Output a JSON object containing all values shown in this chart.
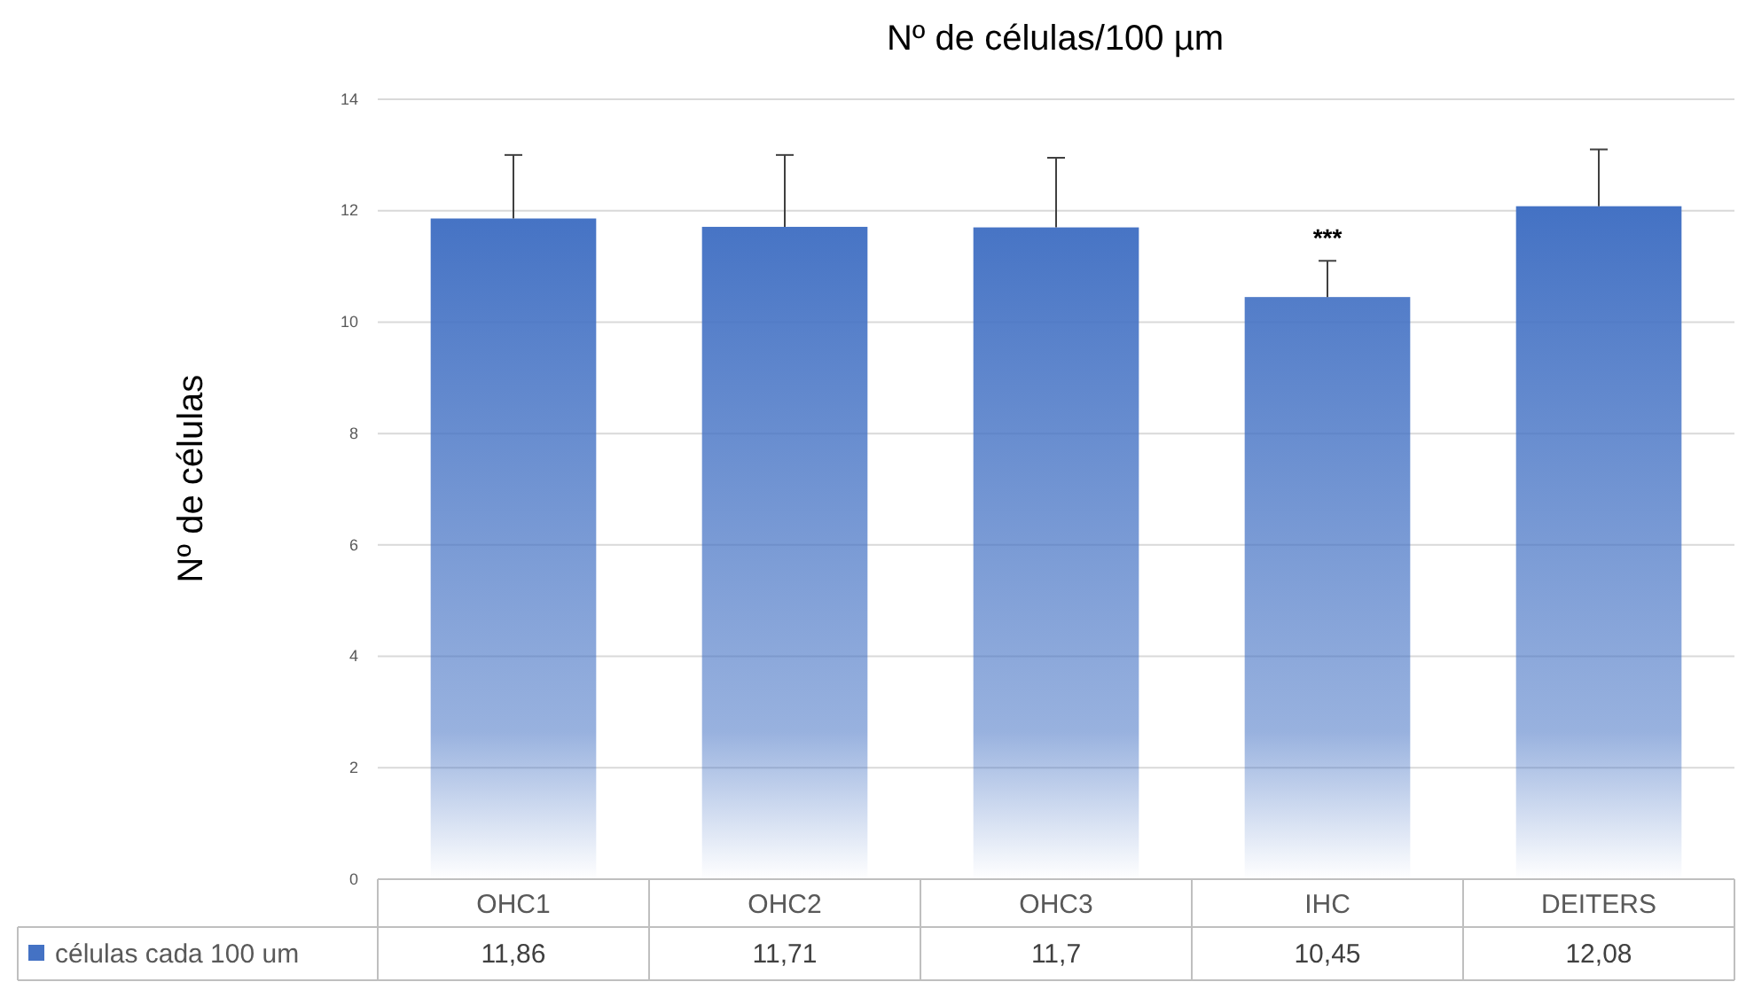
{
  "chart_data": {
    "type": "bar",
    "title": "Nº de células/100 µm",
    "ylabel": "Nº de células",
    "categories": [
      "OHC1",
      "OHC2",
      "OHC3",
      "IHC",
      "DEITERS"
    ],
    "series": [
      {
        "name": "células cada 100 um",
        "color": "#4472c4",
        "values": [
          11.86,
          11.71,
          11.7,
          10.45,
          12.08
        ],
        "errors": [
          [
            11.86,
            13.0
          ],
          [
            11.71,
            13.0
          ],
          [
            11.7,
            12.95
          ],
          [
            10.45,
            11.1
          ],
          [
            12.08,
            13.1
          ]
        ],
        "value_labels": [
          "11,86",
          "11,71",
          "11,7",
          "10,45",
          "12,08"
        ]
      }
    ],
    "ylim": [
      0,
      14
    ],
    "yticks": [
      0,
      2,
      4,
      6,
      8,
      10,
      12,
      14
    ],
    "grid": "y",
    "legend": "bottom",
    "annotations": [
      {
        "text": "***",
        "x": "IHC",
        "y": 11.1
      }
    ]
  }
}
